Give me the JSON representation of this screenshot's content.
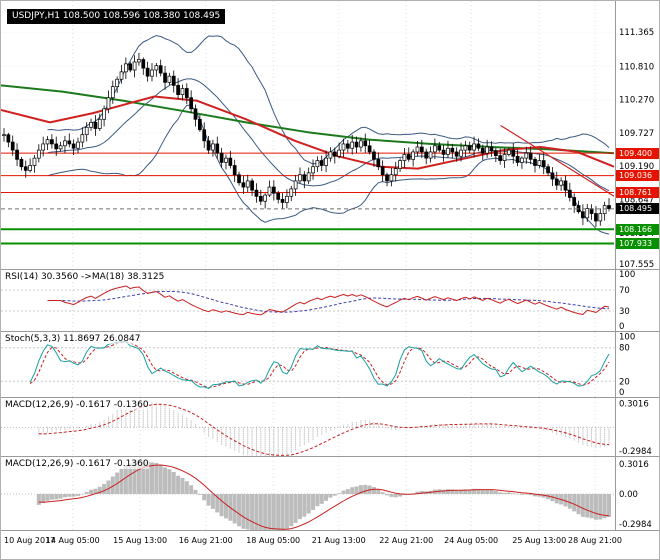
{
  "time_axis": {
    "labels": [
      "10 Aug 2017",
      "14 Aug 05:00",
      "15 Aug 13:00",
      "16 Aug 21:00",
      "18 Aug 05:00",
      "21 Aug 13:00",
      "22 Aug 21:00",
      "24 Aug 05:00",
      "25 Aug 13:00",
      "28 Aug 21:00"
    ],
    "fracs": [
      0.008,
      0.117,
      0.227,
      0.334,
      0.444,
      0.551,
      0.661,
      0.767,
      0.878,
      0.969
    ]
  },
  "chart_data": [
    {
      "type": "candlestick",
      "symbol": "USDJPY",
      "timeframe": "H1",
      "title": "USDJPY,H1 108.500 108.596 108.380 108.495",
      "ohlc_header": {
        "open": "108.500",
        "high": "108.596",
        "low": "108.380",
        "close": "108.495"
      },
      "ylim": [
        107.52,
        111.87
      ],
      "yticks": [
        "111.365",
        "110.810",
        "110.270",
        "109.727",
        "109.190",
        "108.647",
        "108.104",
        "107.555"
      ],
      "closes": [
        109.7,
        109.58,
        109.45,
        109.3,
        109.18,
        109.12,
        109.2,
        109.32,
        109.45,
        109.55,
        109.62,
        109.55,
        109.47,
        109.52,
        109.6,
        109.55,
        109.48,
        109.58,
        109.7,
        109.82,
        109.9,
        109.8,
        109.95,
        110.12,
        110.3,
        110.48,
        110.6,
        110.72,
        110.85,
        110.75,
        110.88,
        110.92,
        110.78,
        110.65,
        110.75,
        110.82,
        110.7,
        110.55,
        110.65,
        110.5,
        110.35,
        110.45,
        110.3,
        110.12,
        109.95,
        109.78,
        109.6,
        109.45,
        109.55,
        109.4,
        109.25,
        109.32,
        109.2,
        109.05,
        108.92,
        108.85,
        108.95,
        108.8,
        108.7,
        108.62,
        108.72,
        108.85,
        108.75,
        108.65,
        108.6,
        108.7,
        108.82,
        108.95,
        109.05,
        108.95,
        109.08,
        109.18,
        109.28,
        109.2,
        109.32,
        109.42,
        109.35,
        109.45,
        109.55,
        109.48,
        109.58,
        109.5,
        109.6,
        109.52,
        109.42,
        109.3,
        109.18,
        109.05,
        108.95,
        109.05,
        109.15,
        109.28,
        109.38,
        109.3,
        109.42,
        109.5,
        109.42,
        109.32,
        109.42,
        109.52,
        109.45,
        109.38,
        109.48,
        109.42,
        109.35,
        109.45,
        109.52,
        109.45,
        109.55,
        109.48,
        109.4,
        109.5,
        109.44,
        109.36,
        109.28,
        109.38,
        109.45,
        109.35,
        109.25,
        109.32,
        109.4,
        109.3,
        109.2,
        109.28,
        109.18,
        109.08,
        108.98,
        108.88,
        108.95,
        108.8,
        108.68,
        108.55,
        108.45,
        108.35,
        108.5,
        108.42,
        108.3,
        108.42,
        108.55,
        108.5
      ],
      "overlays": {
        "bollinger": {
          "period": 20,
          "deviation": 2,
          "color": "#3a5a82"
        },
        "ma_green": {
          "color": "#1c7a1c",
          "points": [
            [
              0,
              110.5
            ],
            [
              0.1,
              110.4
            ],
            [
              0.2,
              110.25
            ],
            [
              0.3,
              110.08
            ],
            [
              0.4,
              109.9
            ],
            [
              0.5,
              109.74
            ],
            [
              0.6,
              109.62
            ],
            [
              0.7,
              109.55
            ],
            [
              0.8,
              109.5
            ],
            [
              0.9,
              109.46
            ],
            [
              1,
              109.4
            ]
          ]
        },
        "ma_red": {
          "color": "#d02020",
          "points": [
            [
              0,
              110.1
            ],
            [
              0.08,
              109.9
            ],
            [
              0.15,
              110.05
            ],
            [
              0.25,
              110.32
            ],
            [
              0.32,
              110.25
            ],
            [
              0.4,
              109.95
            ],
            [
              0.48,
              109.6
            ],
            [
              0.55,
              109.35
            ],
            [
              0.62,
              109.18
            ],
            [
              0.68,
              109.15
            ],
            [
              0.75,
              109.3
            ],
            [
              0.82,
              109.45
            ],
            [
              0.88,
              109.5
            ],
            [
              0.94,
              109.42
            ],
            [
              1,
              109.18
            ]
          ]
        },
        "trendline": {
          "color": "#d02020",
          "points": [
            [
              0.815,
              109.85
            ],
            [
              1.0,
              108.7
            ]
          ]
        }
      },
      "hlines": [
        {
          "price": 109.4,
          "label": "109.400",
          "color": "#e41400",
          "width": 1
        },
        {
          "price": 109.036,
          "label": "109.036",
          "color": "#e41400",
          "width": 1
        },
        {
          "price": 108.761,
          "label": "108.761",
          "color": "#e41400",
          "width": 1
        },
        {
          "price": 108.166,
          "label": "108.166",
          "color": "#089000",
          "width": 2
        },
        {
          "price": 107.933,
          "label": "107.933",
          "color": "#089000",
          "width": 2
        }
      ],
      "last_price": {
        "value": 108.495,
        "label": "108.495",
        "box_color": "#000000"
      },
      "candle_colors": {
        "up_fill": "#ffffff",
        "down_fill": "#000000",
        "outline": "#000000"
      }
    },
    {
      "type": "line",
      "name": "RSI",
      "label": "RSI(14) 30.3560 ->MA(18) 38.3125",
      "period": 14,
      "ma_period": 18,
      "yticks": [
        "100",
        "70",
        "30",
        "0"
      ],
      "tick_vals": [
        100,
        70,
        30,
        0
      ],
      "levels": [
        70,
        30
      ],
      "ylim": [
        -8,
        108
      ],
      "colors": {
        "main": "#c82020",
        "signal": "#4040b0"
      }
    },
    {
      "type": "line",
      "name": "Stochastic",
      "label": "Stoch(5,3,3) 11.8697 26.0847",
      "k": 5,
      "d": 3,
      "slowing": 3,
      "yticks": [
        "100",
        "80",
        "20",
        "0"
      ],
      "tick_vals": [
        100,
        80,
        20,
        0
      ],
      "levels": [
        80,
        20
      ],
      "ylim": [
        -8,
        108
      ],
      "colors": {
        "main": "#18a0a0",
        "signal": "#c82020"
      }
    },
    {
      "type": "macd",
      "name": "MACD-upper",
      "label": "MACD(12,26,9) -0.1617 -0.1360",
      "fast": 12,
      "slow": 26,
      "signal": 9,
      "yticks": [
        "0.3016",
        "-0.2984"
      ],
      "tick_vals": [
        0.3016,
        -0.2984
      ],
      "ylim": [
        -0.36,
        0.37
      ],
      "colors": {
        "hist": "#a8a8a8",
        "signal": "#c82020"
      },
      "style": "outline"
    },
    {
      "type": "macd",
      "name": "MACD-lower",
      "label": "MACD(12,26,9) -0.1617 -0.1360",
      "fast": 12,
      "slow": 26,
      "signal": 9,
      "yticks": [
        "0.3016",
        "0.00",
        "-0.2984"
      ],
      "tick_vals": [
        0.3016,
        0,
        -0.2984
      ],
      "ylim": [
        -0.36,
        0.37
      ],
      "colors": {
        "hist": "#bcbcbc",
        "signal": "#c82020"
      },
      "style": "solid"
    }
  ]
}
